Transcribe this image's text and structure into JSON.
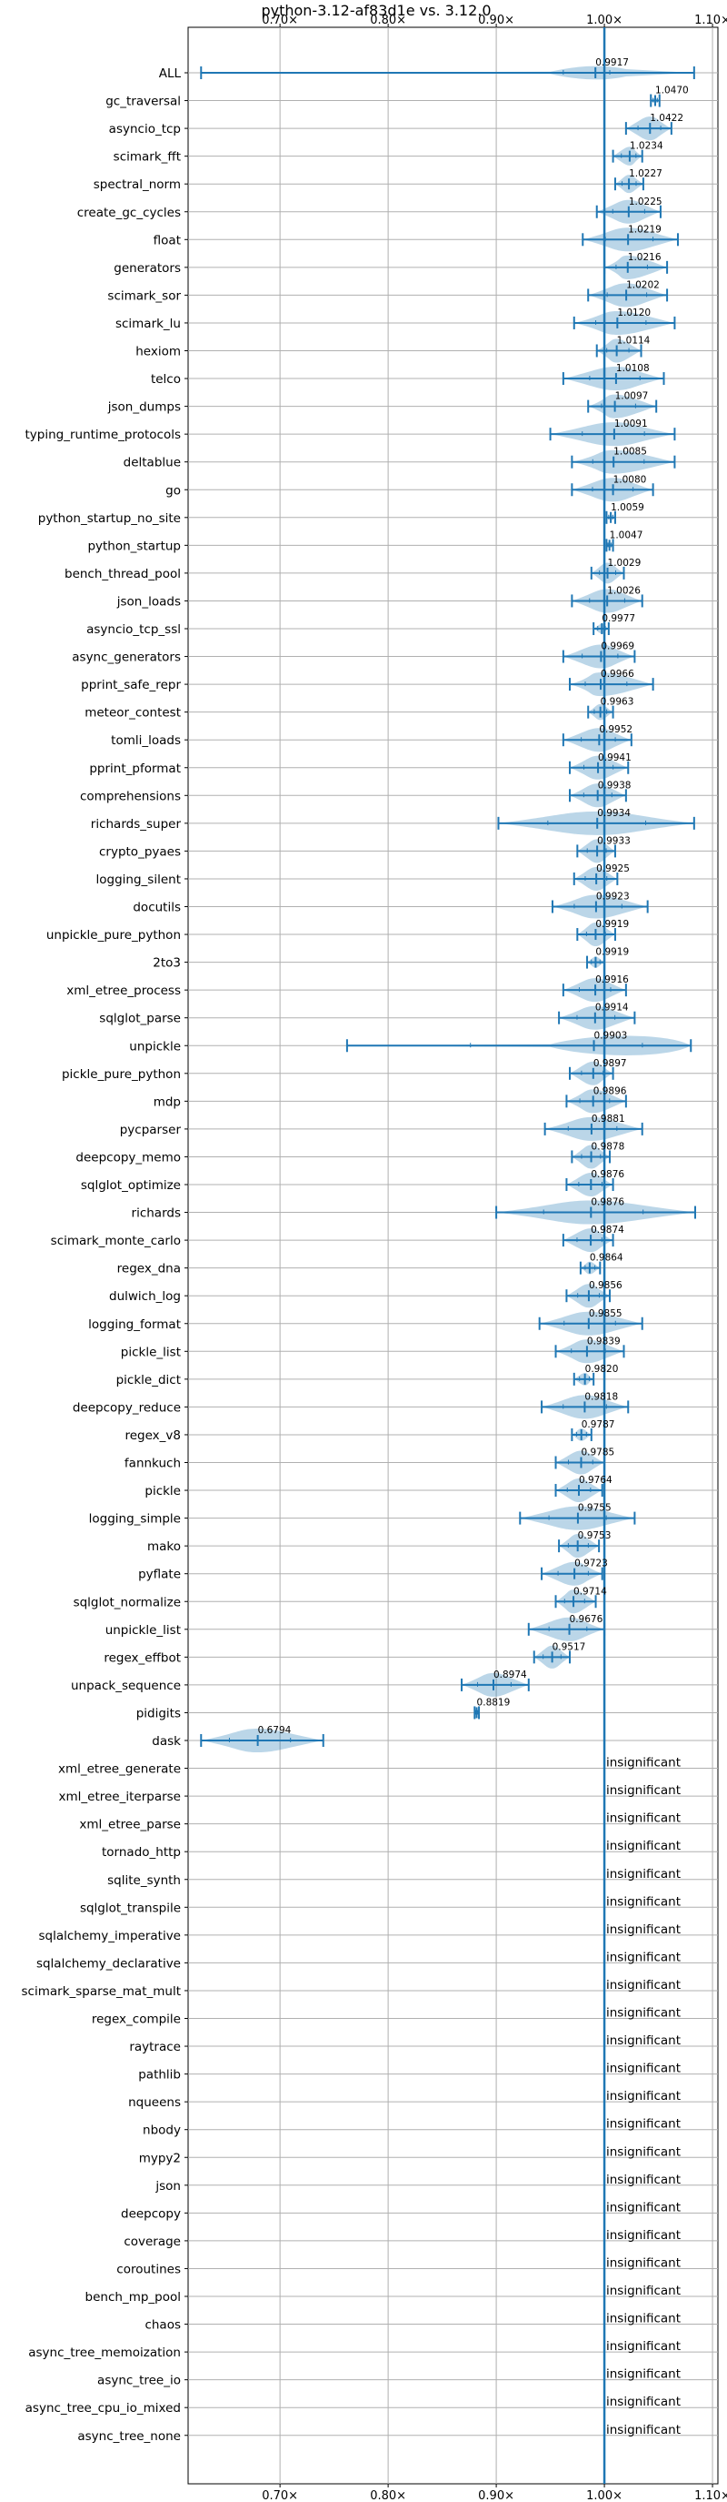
{
  "chart_data": {
    "type": "violin",
    "title": "python-3.12-af83d1e vs. 3.12.0",
    "xlabel": "",
    "ylabel": "",
    "xlim": [
      0.615,
      1.105
    ],
    "xticks": [
      {
        "value": 0.7,
        "label": "0.70×"
      },
      {
        "value": 0.8,
        "label": "0.80×"
      },
      {
        "value": 0.9,
        "label": "0.90×"
      },
      {
        "value": 1.0,
        "label": "1.00×"
      },
      {
        "value": 1.1,
        "label": "1.10×"
      }
    ],
    "reference_line": 1.0,
    "grid": true,
    "accent_color": "#1f77b4",
    "violin_fill": "#1f77b4",
    "insignificant_text": "insignificant",
    "benchmarks": [
      {
        "name": "ALL",
        "median": 0.9917,
        "label": "0.9917",
        "min": 0.627,
        "max": 1.083,
        "q1": 0.962,
        "q3": 1.005,
        "shape": "all"
      },
      {
        "name": "gc_traversal",
        "median": 1.047,
        "label": "1.0470",
        "min": 1.043,
        "max": 1.051
      },
      {
        "name": "asyncio_tcp",
        "median": 1.0422,
        "label": "1.0422",
        "min": 1.02,
        "max": 1.062
      },
      {
        "name": "scimark_fft",
        "median": 1.0234,
        "label": "1.0234",
        "min": 1.008,
        "max": 1.035
      },
      {
        "name": "spectral_norm",
        "median": 1.0227,
        "label": "1.0227",
        "min": 1.01,
        "max": 1.036
      },
      {
        "name": "create_gc_cycles",
        "median": 1.0225,
        "label": "1.0225",
        "min": 0.993,
        "max": 1.052
      },
      {
        "name": "float",
        "median": 1.0219,
        "label": "1.0219",
        "min": 0.98,
        "max": 1.068
      },
      {
        "name": "generators",
        "median": 1.0216,
        "label": "1.0216",
        "min": 1.0,
        "max": 1.058
      },
      {
        "name": "scimark_sor",
        "median": 1.0202,
        "label": "1.0202",
        "min": 0.985,
        "max": 1.058
      },
      {
        "name": "scimark_lu",
        "median": 1.012,
        "label": "1.0120",
        "min": 0.972,
        "max": 1.065
      },
      {
        "name": "hexiom",
        "median": 1.0114,
        "label": "1.0114",
        "min": 0.993,
        "max": 1.034
      },
      {
        "name": "telco",
        "median": 1.0108,
        "label": "1.0108",
        "min": 0.962,
        "max": 1.055
      },
      {
        "name": "json_dumps",
        "median": 1.0097,
        "label": "1.0097",
        "min": 0.985,
        "max": 1.048
      },
      {
        "name": "typing_runtime_protocols",
        "median": 1.0091,
        "label": "1.0091",
        "min": 0.95,
        "max": 1.065
      },
      {
        "name": "deltablue",
        "median": 1.0085,
        "label": "1.0085",
        "min": 0.97,
        "max": 1.065
      },
      {
        "name": "go",
        "median": 1.008,
        "label": "1.0080",
        "min": 0.97,
        "max": 1.045
      },
      {
        "name": "python_startup_no_site",
        "median": 1.0059,
        "label": "1.0059",
        "min": 1.002,
        "max": 1.01
      },
      {
        "name": "python_startup",
        "median": 1.0047,
        "label": "1.0047",
        "min": 1.002,
        "max": 1.008
      },
      {
        "name": "bench_thread_pool",
        "median": 1.0029,
        "label": "1.0029",
        "min": 0.988,
        "max": 1.018
      },
      {
        "name": "json_loads",
        "median": 1.0026,
        "label": "1.0026",
        "min": 0.97,
        "max": 1.035
      },
      {
        "name": "asyncio_tcp_ssl",
        "median": 0.9977,
        "label": "0.9977",
        "min": 0.99,
        "max": 1.004
      },
      {
        "name": "async_generators",
        "median": 0.9969,
        "label": "0.9969",
        "min": 0.962,
        "max": 1.028
      },
      {
        "name": "pprint_safe_repr",
        "median": 0.9966,
        "label": "0.9966",
        "min": 0.968,
        "max": 1.045
      },
      {
        "name": "meteor_contest",
        "median": 0.9963,
        "label": "0.9963",
        "min": 0.985,
        "max": 1.008
      },
      {
        "name": "tomli_loads",
        "median": 0.9952,
        "label": "0.9952",
        "min": 0.962,
        "max": 1.025
      },
      {
        "name": "pprint_pformat",
        "median": 0.9941,
        "label": "0.9941",
        "min": 0.968,
        "max": 1.022
      },
      {
        "name": "comprehensions",
        "median": 0.9938,
        "label": "0.9938",
        "min": 0.968,
        "max": 1.02
      },
      {
        "name": "richards_super",
        "median": 0.9934,
        "label": "0.9934",
        "min": 0.902,
        "max": 1.083
      },
      {
        "name": "crypto_pyaes",
        "median": 0.9933,
        "label": "0.9933",
        "min": 0.975,
        "max": 1.01
      },
      {
        "name": "logging_silent",
        "median": 0.9925,
        "label": "0.9925",
        "min": 0.972,
        "max": 1.012
      },
      {
        "name": "docutils",
        "median": 0.9923,
        "label": "0.9923",
        "min": 0.952,
        "max": 1.04
      },
      {
        "name": "unpickle_pure_python",
        "median": 0.9919,
        "label": "0.9919",
        "min": 0.975,
        "max": 1.01
      },
      {
        "name": "2to3",
        "median": 0.9919,
        "label": "0.9919",
        "min": 0.984,
        "max": 1.0
      },
      {
        "name": "xml_etree_process",
        "median": 0.9916,
        "label": "0.9916",
        "min": 0.962,
        "max": 1.02
      },
      {
        "name": "sqlglot_parse",
        "median": 0.9914,
        "label": "0.9914",
        "min": 0.958,
        "max": 1.028
      },
      {
        "name": "unpickle",
        "median": 0.9903,
        "label": "0.9903",
        "min": 0.762,
        "max": 1.08,
        "shape": "unpickle"
      },
      {
        "name": "pickle_pure_python",
        "median": 0.9897,
        "label": "0.9897",
        "min": 0.968,
        "max": 1.008
      },
      {
        "name": "mdp",
        "median": 0.9896,
        "label": "0.9896",
        "min": 0.965,
        "max": 1.02
      },
      {
        "name": "pycparser",
        "median": 0.9881,
        "label": "0.9881",
        "min": 0.945,
        "max": 1.035
      },
      {
        "name": "deepcopy_memo",
        "median": 0.9878,
        "label": "0.9878",
        "min": 0.97,
        "max": 1.005
      },
      {
        "name": "sqlglot_optimize",
        "median": 0.9876,
        "label": "0.9876",
        "min": 0.965,
        "max": 1.008
      },
      {
        "name": "richards",
        "median": 0.9876,
        "label": "0.9876",
        "min": 0.9,
        "max": 1.084
      },
      {
        "name": "scimark_monte_carlo",
        "median": 0.9874,
        "label": "0.9874",
        "min": 0.962,
        "max": 1.008
      },
      {
        "name": "regex_dna",
        "median": 0.9864,
        "label": "0.9864",
        "min": 0.978,
        "max": 0.996
      },
      {
        "name": "dulwich_log",
        "median": 0.9856,
        "label": "0.9856",
        "min": 0.965,
        "max": 1.005
      },
      {
        "name": "logging_format",
        "median": 0.9855,
        "label": "0.9855",
        "min": 0.94,
        "max": 1.035
      },
      {
        "name": "pickle_list",
        "median": 0.9839,
        "label": "0.9839",
        "min": 0.955,
        "max": 1.018
      },
      {
        "name": "pickle_dict",
        "median": 0.982,
        "label": "0.9820",
        "min": 0.972,
        "max": 0.99
      },
      {
        "name": "deepcopy_reduce",
        "median": 0.9818,
        "label": "0.9818",
        "min": 0.942,
        "max": 1.022
      },
      {
        "name": "regex_v8",
        "median": 0.9787,
        "label": "0.9787",
        "min": 0.97,
        "max": 0.988
      },
      {
        "name": "fannkuch",
        "median": 0.9785,
        "label": "0.9785",
        "min": 0.955,
        "max": 1.0
      },
      {
        "name": "pickle",
        "median": 0.9764,
        "label": "0.9764",
        "min": 0.955,
        "max": 0.998
      },
      {
        "name": "logging_simple",
        "median": 0.9755,
        "label": "0.9755",
        "min": 0.922,
        "max": 1.028
      },
      {
        "name": "mako",
        "median": 0.9753,
        "label": "0.9753",
        "min": 0.958,
        "max": 0.995
      },
      {
        "name": "pyflate",
        "median": 0.9723,
        "label": "0.9723",
        "min": 0.942,
        "max": 0.998
      },
      {
        "name": "sqlglot_normalize",
        "median": 0.9714,
        "label": "0.9714",
        "min": 0.955,
        "max": 0.992
      },
      {
        "name": "unpickle_list",
        "median": 0.9676,
        "label": "0.9676",
        "min": 0.93,
        "max": 1.0
      },
      {
        "name": "regex_effbot",
        "median": 0.9517,
        "label": "0.9517",
        "min": 0.935,
        "max": 0.968
      },
      {
        "name": "unpack_sequence",
        "median": 0.8974,
        "label": "0.8974",
        "min": 0.868,
        "max": 0.93
      },
      {
        "name": "pidigits",
        "median": 0.8819,
        "label": "0.8819",
        "min": 0.88,
        "max": 0.884
      },
      {
        "name": "dask",
        "median": 0.6794,
        "label": "0.6794",
        "min": 0.627,
        "max": 0.74
      },
      {
        "name": "xml_etree_generate",
        "insignificant": true
      },
      {
        "name": "xml_etree_iterparse",
        "insignificant": true
      },
      {
        "name": "xml_etree_parse",
        "insignificant": true
      },
      {
        "name": "tornado_http",
        "insignificant": true
      },
      {
        "name": "sqlite_synth",
        "insignificant": true
      },
      {
        "name": "sqlglot_transpile",
        "insignificant": true
      },
      {
        "name": "sqlalchemy_imperative",
        "insignificant": true
      },
      {
        "name": "sqlalchemy_declarative",
        "insignificant": true
      },
      {
        "name": "scimark_sparse_mat_mult",
        "insignificant": true
      },
      {
        "name": "regex_compile",
        "insignificant": true
      },
      {
        "name": "raytrace",
        "insignificant": true
      },
      {
        "name": "pathlib",
        "insignificant": true
      },
      {
        "name": "nqueens",
        "insignificant": true
      },
      {
        "name": "nbody",
        "insignificant": true
      },
      {
        "name": "mypy2",
        "insignificant": true
      },
      {
        "name": "json",
        "insignificant": true
      },
      {
        "name": "deepcopy",
        "insignificant": true
      },
      {
        "name": "coverage",
        "insignificant": true
      },
      {
        "name": "coroutines",
        "insignificant": true
      },
      {
        "name": "bench_mp_pool",
        "insignificant": true
      },
      {
        "name": "chaos",
        "insignificant": true
      },
      {
        "name": "async_tree_memoization",
        "insignificant": true
      },
      {
        "name": "async_tree_io",
        "insignificant": true
      },
      {
        "name": "async_tree_cpu_io_mixed",
        "insignificant": true
      },
      {
        "name": "async_tree_none",
        "insignificant": true
      }
    ]
  }
}
